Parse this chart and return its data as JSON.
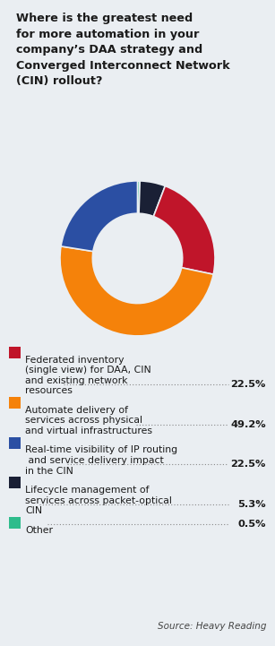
{
  "title": "Where is the greatest need\nfor more automation in your\ncompany’s DAA strategy and\nConverged Interconnect Network\n(CIN) rollout?",
  "plot_slices": [
    0.5,
    5.3,
    22.5,
    49.2,
    22.5
  ],
  "plot_colors": [
    "#2ebc8c",
    "#1a2035",
    "#c0152a",
    "#f5820a",
    "#2b4fa3"
  ],
  "legend_entries": [
    {
      "color": "#c0152a",
      "lines": [
        "Federated inventory",
        "(single view) for DAA, CIN",
        "and existing network",
        "resources"
      ],
      "pct": "22.5%"
    },
    {
      "color": "#f5820a",
      "lines": [
        "Automate delivery of",
        "services across physical",
        "and virtual infrastructures"
      ],
      "pct": "49.2%"
    },
    {
      "color": "#2b4fa3",
      "lines": [
        "Real-time visibility of IP routing",
        " and service delivery impact",
        "in the CIN"
      ],
      "pct": "22.5%"
    },
    {
      "color": "#1a2035",
      "lines": [
        "Lifecycle management of",
        "services across packet-optical",
        "CIN"
      ],
      "pct": "5.3%"
    },
    {
      "color": "#2ebc8c",
      "lines": [
        "Other"
      ],
      "pct": "0.5%"
    }
  ],
  "source": "Source: Heavy Reading",
  "bg_color": "#eaeef2",
  "donut_width": 0.42
}
